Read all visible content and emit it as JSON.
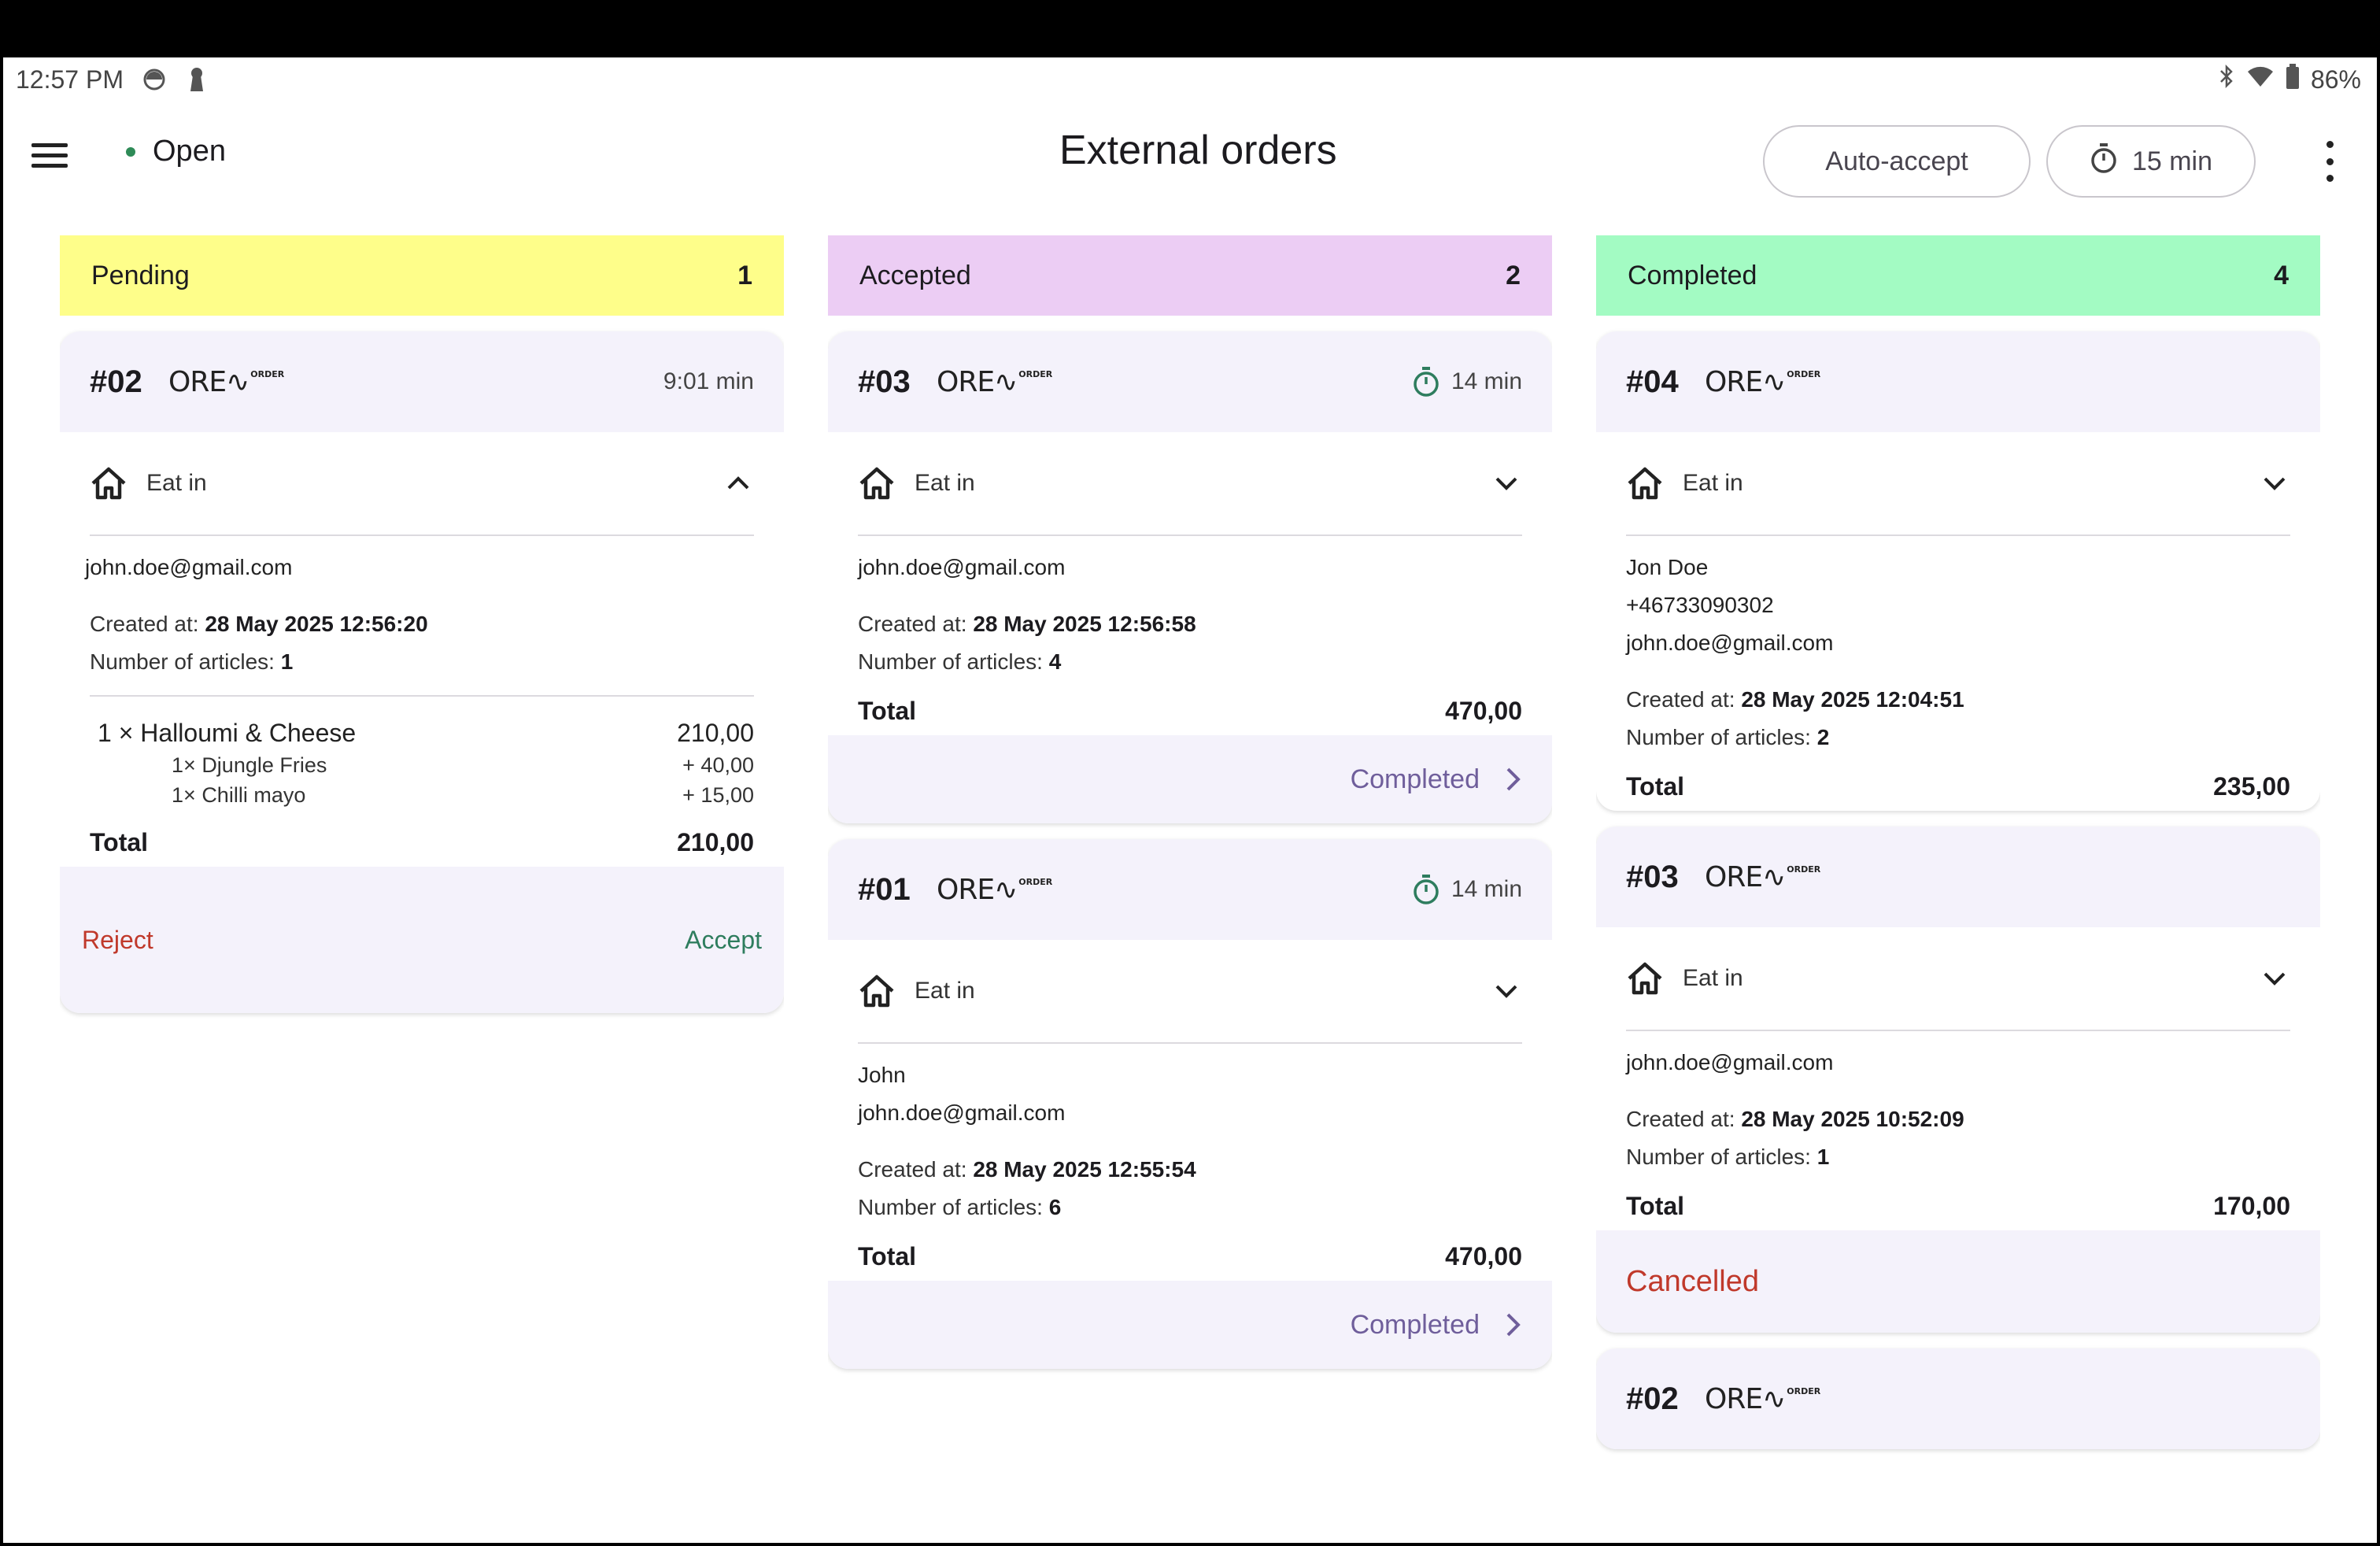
{
  "status_bar": {
    "time": "12:57 PM",
    "battery": "86%",
    "icons": [
      "shield-icon",
      "keyhole-icon",
      "bluetooth-icon",
      "wifi-icon",
      "battery-icon"
    ]
  },
  "app_bar": {
    "store_status": "Open",
    "title": "External orders",
    "auto_accept_label": "Auto-accept",
    "prep_time_label": "15 min"
  },
  "brand": {
    "logo_text": "ORE∿",
    "logo_sup": "ORDER"
  },
  "columns": {
    "pending": {
      "title": "Pending",
      "count": "1",
      "color": "#fefe8a",
      "orders": [
        {
          "number": "#02",
          "elapsed": "9:01 min",
          "type": "Eat in",
          "email": "john.doe@gmail.com",
          "created_label": "Created at:",
          "created_value": "28 May 2025 12:56:20",
          "articles_label": "Number of articles:",
          "articles_value": "1",
          "item": {
            "qty": "1 ×",
            "name": "Halloumi & Cheese",
            "price": "210,00"
          },
          "extras": [
            {
              "qty": "1×",
              "name": "Djungle Fries",
              "price": "+ 40,00"
            },
            {
              "qty": "1×",
              "name": "Chilli mayo",
              "price": "+ 15,00"
            }
          ],
          "total_label": "Total",
          "total_value": "210,00",
          "reject_label": "Reject",
          "accept_label": "Accept"
        }
      ]
    },
    "accepted": {
      "title": "Accepted",
      "count": "2",
      "color": "#eccdf4",
      "orders": [
        {
          "number": "#03",
          "elapsed": "14 min",
          "type": "Eat in",
          "email": "john.doe@gmail.com",
          "created_label": "Created at:",
          "created_value": "28 May 2025 12:56:58",
          "articles_label": "Number of articles:",
          "articles_value": "4",
          "total_label": "Total",
          "total_value": "470,00",
          "action_label": "Completed"
        },
        {
          "number": "#01",
          "elapsed": "14 min",
          "type": "Eat in",
          "name": "John",
          "email": "john.doe@gmail.com",
          "created_label": "Created at:",
          "created_value": "28 May 2025 12:55:54",
          "articles_label": "Number of articles:",
          "articles_value": "6",
          "total_label": "Total",
          "total_value": "470,00",
          "action_label": "Completed"
        }
      ]
    },
    "completed": {
      "title": "Completed",
      "count": "4",
      "color": "#a3fbc3",
      "orders": [
        {
          "number": "#04",
          "type": "Eat in",
          "name": "Jon Doe",
          "phone": "+46733090302",
          "email": "john.doe@gmail.com",
          "created_label": "Created at:",
          "created_value": "28 May 2025 12:04:51",
          "articles_label": "Number of articles:",
          "articles_value": "2",
          "total_label": "Total",
          "total_value": "235,00"
        },
        {
          "number": "#03",
          "type": "Eat in",
          "email": "john.doe@gmail.com",
          "created_label": "Created at:",
          "created_value": "28 May 2025 10:52:09",
          "articles_label": "Number of articles:",
          "articles_value": "1",
          "total_label": "Total",
          "total_value": "170,00",
          "status_label": "Cancelled"
        },
        {
          "number": "#02"
        }
      ]
    }
  }
}
